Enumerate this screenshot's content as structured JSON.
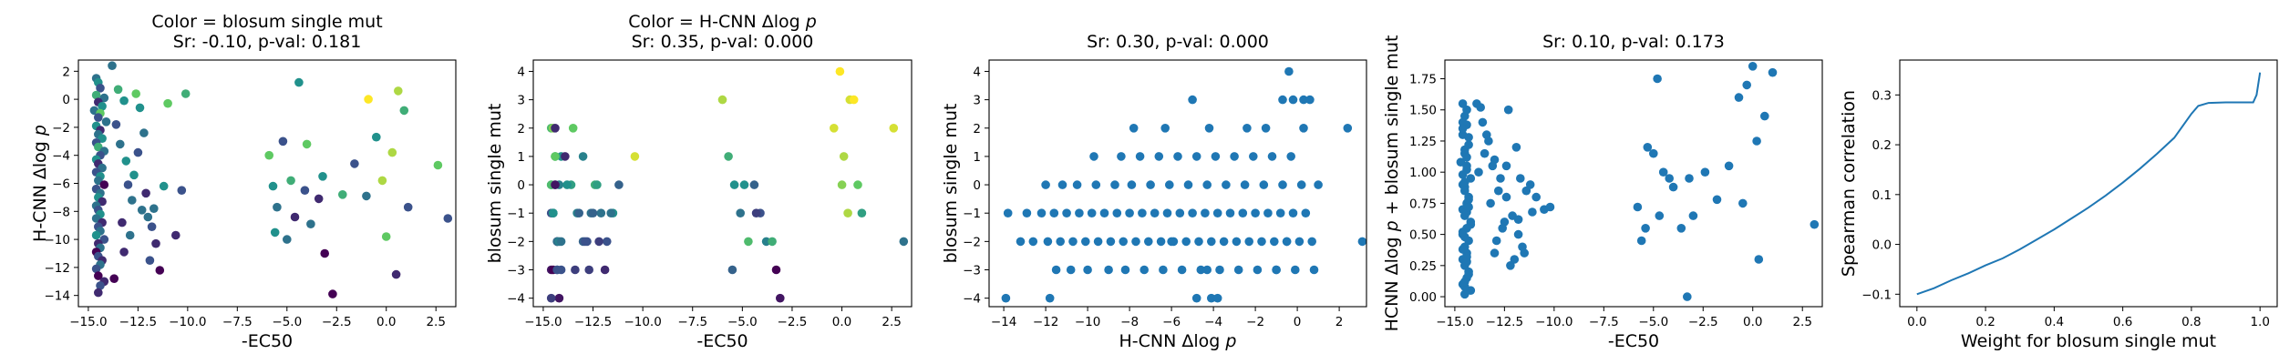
{
  "figure": {
    "colors": {
      "axis": "#000000",
      "scatter": "#1f77b4",
      "line": "#1f77b4",
      "viridis": [
        "#440154",
        "#3b528b",
        "#21918c",
        "#5ec962",
        "#fde725"
      ]
    }
  },
  "chart_data": [
    {
      "type": "scatter",
      "title": "Color = blosum single mut",
      "subtitle": "Sr: -0.10, p-val: 0.181",
      "xlabel": "-EC50",
      "ylabel": "H-CNN Δlog p",
      "xlim": [
        -15.5,
        3.5
      ],
      "ylim": [
        -14.8,
        2.8
      ],
      "xticks": [
        -15.0,
        -12.5,
        -10.0,
        -7.5,
        -5.0,
        -2.5,
        0.0,
        2.5
      ],
      "yticks": [
        2,
        0,
        -2,
        -4,
        -6,
        -8,
        -10,
        -12,
        -14
      ],
      "grid": false,
      "colormap": "viridis",
      "color_range": [
        -4,
        4
      ],
      "x": [
        -14.6,
        -14.5,
        -14.4,
        -14.6,
        -14.2,
        -14.5,
        -14.3,
        -14.7,
        -14.4,
        -14.5,
        -14.1,
        -14.6,
        -14.4,
        -14.5,
        -14.3,
        -14.6,
        -14.5,
        -14.2,
        -14.4,
        -14.6,
        -14.5,
        -14.3,
        -14.6,
        -14.4,
        -14.5,
        -14.2,
        -14.6,
        -14.4,
        -14.5,
        -14.3,
        -14.6,
        -14.5,
        -14.4,
        -14.6,
        -14.3,
        -14.5,
        -14.4,
        -14.6,
        -14.2,
        -14.5,
        -14.4,
        -14.6,
        -14.5,
        -14.3,
        -14.4,
        -14.6,
        -14.5,
        -14.2,
        -14.4,
        -14.5,
        -13.8,
        -13.5,
        -13.2,
        -13.6,
        -13.4,
        -13.1,
        -13.0,
        -12.8,
        -13.3,
        -12.9,
        -12.6,
        -12.4,
        -12.2,
        -12.5,
        -12.7,
        -12.1,
        -12.3,
        -11.8,
        -11.6,
        -11.9,
        -11.4,
        -11.2,
        -11.7,
        -11.0,
        -10.6,
        -10.3,
        -10.1,
        -12.0,
        -13.2,
        -13.7,
        -5.9,
        -5.7,
        -5.5,
        -5.2,
        -4.8,
        -4.6,
        -4.4,
        -4.1,
        -3.8,
        -3.4,
        -3.1,
        -2.7,
        -2.2,
        -1.6,
        -0.9,
        -0.5,
        -0.2,
        0.0,
        0.3,
        0.6,
        0.9,
        1.1,
        2.6,
        3.1,
        -5.6,
        -5.0,
        -4.0,
        -3.2,
        -1.0,
        0.5
      ],
      "y": [
        1.5,
        1.2,
        0.8,
        0.3,
        0.1,
        -0.2,
        -0.5,
        -0.8,
        -1.0,
        -1.3,
        -1.6,
        -1.9,
        -2.2,
        -2.5,
        -2.8,
        -3.1,
        -3.4,
        -3.7,
        -4.0,
        -4.3,
        -4.6,
        -4.9,
        -5.2,
        -5.5,
        -5.8,
        -6.1,
        -6.4,
        -6.7,
        -7.0,
        -7.3,
        -7.6,
        -7.9,
        -8.2,
        -8.5,
        -8.8,
        -9.1,
        -9.4,
        -9.7,
        -10.0,
        -10.3,
        -10.6,
        -10.9,
        -11.2,
        -11.5,
        -11.8,
        -12.1,
        -12.6,
        -13.0,
        -13.3,
        -13.8,
        2.4,
        0.7,
        -0.1,
        -1.8,
        -3.2,
        -4.4,
        -6.1,
        -7.2,
        -8.8,
        -9.7,
        0.4,
        -0.6,
        -2.4,
        -3.8,
        -5.4,
        -6.7,
        -7.9,
        -9.1,
        -10.3,
        -11.5,
        -12.2,
        -6.2,
        -7.8,
        -0.3,
        -9.7,
        -6.5,
        0.4,
        -8.4,
        -10.9,
        -12.8,
        -4.0,
        -6.2,
        -7.7,
        -3.0,
        -5.8,
        -8.4,
        1.2,
        -6.5,
        -8.9,
        -7.1,
        -11.0,
        -13.9,
        -6.8,
        -4.6,
        0.0,
        -2.7,
        -5.8,
        -9.8,
        -3.8,
        0.6,
        -0.8,
        -7.7,
        -4.7,
        -8.5,
        -9.5,
        -10.0,
        -3.2,
        -5.5,
        -6.9,
        -12.5
      ],
      "c": [
        -1,
        0,
        -2,
        1,
        -1,
        -3,
        0,
        -1,
        2,
        -2,
        -1,
        0,
        -3,
        -1,
        0,
        -2,
        1,
        -1,
        -2,
        0,
        -3,
        -1,
        -2,
        0,
        -1,
        -4,
        -2,
        -1,
        0,
        -3,
        -1,
        -2,
        0,
        -1,
        -3,
        -2,
        -1,
        0,
        -2,
        -3,
        -1,
        -4,
        -2,
        -3,
        -1,
        -2,
        -4,
        -3,
        -2,
        -3,
        -1,
        1,
        0,
        -2,
        -1,
        0,
        -2,
        -1,
        -3,
        -1,
        2,
        0,
        -1,
        -2,
        0,
        -3,
        -1,
        -2,
        -3,
        -2,
        -4,
        0,
        -1,
        2,
        -3,
        -2,
        1,
        -1,
        -3,
        -4,
        2,
        0,
        -1,
        -2,
        1,
        -3,
        0,
        -2,
        -1,
        -3,
        -4,
        -4,
        1,
        -2,
        4,
        0,
        3,
        2,
        3,
        3,
        1,
        -2,
        2,
        -2,
        0,
        -1,
        2,
        0,
        -1,
        -3
      ]
    },
    {
      "type": "scatter",
      "title": "Color = H-CNN Δlog p",
      "subtitle": "Sr: 0.35, p-val: 0.000",
      "xlabel": "-EC50",
      "ylabel": "blosum single mut",
      "xlim": [
        -15.5,
        3.5
      ],
      "ylim": [
        -4.3,
        4.4
      ],
      "xticks": [
        -15.0,
        -12.5,
        -10.0,
        -7.5,
        -5.0,
        -2.5,
        0.0,
        2.5
      ],
      "yticks": [
        4,
        3,
        2,
        1,
        0,
        -1,
        -2,
        -3,
        -4
      ],
      "grid": false,
      "colormap": "viridis",
      "color_range": [
        -14,
        2
      ],
      "x": [
        -14.6,
        -14.4,
        -14.2,
        -14.5,
        -14.3,
        -14.6,
        -14.5,
        -14.1,
        -14.4,
        -14.6,
        -14.3,
        -14.5,
        -14.2,
        -14.4,
        -14.6,
        -14.5,
        -14.3,
        -14.1,
        -14.4,
        -14.6,
        -14.5,
        -14.2,
        -14.3,
        -14.6,
        -14.4,
        -14.5,
        -14.1,
        -14.3,
        -13.9,
        -13.6,
        -13.3,
        -13.0,
        -12.7,
        -12.4,
        -12.1,
        -11.8,
        -11.5,
        -11.2,
        -10.4,
        -13.5,
        -13.0,
        -12.6,
        -12.2,
        -11.9,
        -13.8,
        -13.2,
        -12.8,
        -12.3,
        -11.6,
        -13.4,
        -12.9,
        -12.5,
        -6.0,
        -5.7,
        -5.4,
        -5.1,
        -4.7,
        -4.4,
        -4.1,
        -3.8,
        -3.3,
        -3.1,
        -0.4,
        -0.1,
        0.1,
        0.4,
        0.6,
        0.8,
        1.0,
        2.6,
        3.1,
        -5.5,
        -4.9,
        -4.3,
        -3.5,
        0.0,
        0.3
      ],
      "y": [
        2,
        1,
        0,
        -1,
        -2,
        -3,
        2,
        1,
        0,
        -1,
        -2,
        -3,
        -4,
        1,
        0,
        -1,
        -2,
        -3,
        2,
        0,
        -1,
        -2,
        -3,
        -4,
        0,
        -1,
        -2,
        -3,
        1,
        0,
        -1,
        -2,
        -3,
        0,
        -1,
        -2,
        -1,
        0,
        1,
        2,
        1,
        -1,
        -2,
        -3,
        0,
        -1,
        -2,
        0,
        -1,
        -3,
        -2,
        -1,
        3,
        1,
        0,
        -1,
        -2,
        0,
        -1,
        -2,
        -3,
        -4,
        2,
        4,
        1,
        3,
        3,
        0,
        -1,
        2,
        -2,
        -3,
        0,
        -1,
        -2,
        0,
        -1
      ],
      "c": [
        -3,
        -5,
        -7,
        -9,
        -11,
        -13,
        -1,
        -6,
        -8,
        -10,
        -12,
        -14,
        -13,
        -2,
        -4,
        -6,
        -8,
        -10,
        -12,
        -3,
        -5,
        -7,
        -9,
        -11,
        -13,
        -6,
        -8,
        -10,
        -12,
        -5,
        -7,
        -9,
        -11,
        -4,
        -8,
        -10,
        -6,
        -9,
        1,
        -2,
        -7,
        -8,
        -11,
        -12,
        -6,
        -9,
        -10,
        -5,
        -8,
        -11,
        -10,
        -9,
        0,
        -4,
        -6,
        -8,
        -3,
        -9,
        -10,
        -7,
        -14,
        -13,
        1,
        2,
        0,
        1,
        2,
        -2,
        -5,
        1,
        -8,
        -9,
        -6,
        -11,
        -4,
        -1,
        0
      ]
    },
    {
      "type": "scatter",
      "title": "Sr: 0.30, p-val: 0.000",
      "xlabel": "H-CNN Δlog p",
      "ylabel": "blosum single mut",
      "xlim": [
        -14.7,
        3.3
      ],
      "ylim": [
        -4.3,
        4.4
      ],
      "xticks": [
        -14,
        -12,
        -10,
        -8,
        -6,
        -4,
        -2,
        0,
        2
      ],
      "yticks": [
        4,
        3,
        2,
        1,
        0,
        -1,
        -2,
        -3,
        -4
      ],
      "grid": false,
      "x": [
        -13.8,
        -12.9,
        -12.2,
        -11.6,
        -11.0,
        -10.4,
        -9.8,
        -9.2,
        -8.6,
        -8.0,
        -7.4,
        -6.8,
        -6.2,
        -5.6,
        -5.0,
        -4.4,
        -3.8,
        -3.2,
        -2.6,
        -2.0,
        -1.4,
        -0.8,
        -0.2,
        0.4,
        -13.2,
        -12.6,
        -11.9,
        -11.3,
        -10.7,
        -10.1,
        -9.5,
        -8.9,
        -8.3,
        -7.7,
        -7.1,
        -6.5,
        -5.9,
        -5.3,
        -4.7,
        -4.1,
        -3.5,
        -2.9,
        -2.3,
        -1.7,
        -1.1,
        -0.5,
        0.1,
        0.7,
        -12.0,
        -11.2,
        -10.5,
        -9.6,
        -8.7,
        -7.9,
        -7.0,
        -6.1,
        -5.2,
        -4.3,
        -3.4,
        -2.5,
        -1.6,
        -0.7,
        0.2,
        1.0,
        -11.5,
        -10.8,
        -10.0,
        -9.0,
        -8.2,
        -7.3,
        -6.4,
        -5.5,
        -4.6,
        -3.7,
        -2.8,
        -1.9,
        -1.0,
        -0.1,
        0.8,
        -9.7,
        -8.4,
        -7.5,
        -6.6,
        -5.7,
        -4.8,
        -3.9,
        -3.0,
        -2.1,
        -1.2,
        -0.3,
        -6.3,
        -4.2,
        -2.4,
        -1.5,
        0.3,
        -5.0,
        -0.7,
        -0.2,
        -7.8,
        -0.4,
        0.3,
        0.6,
        2.4,
        3.1,
        -4.8,
        -4.1,
        -3.8,
        -11.8,
        -13.9,
        -6.0,
        -4.3,
        -1.0,
        -0.5
      ],
      "y": [
        -1,
        -1,
        -1,
        -1,
        -1,
        -1,
        -1,
        -1,
        -1,
        -1,
        -1,
        -1,
        -1,
        -1,
        -1,
        -1,
        -1,
        -1,
        -1,
        -1,
        -1,
        -1,
        -1,
        -1,
        -2,
        -2,
        -2,
        -2,
        -2,
        -2,
        -2,
        -2,
        -2,
        -2,
        -2,
        -2,
        -2,
        -2,
        -2,
        -2,
        -2,
        -2,
        -2,
        -2,
        -2,
        -2,
        -2,
        -2,
        0,
        0,
        0,
        0,
        0,
        0,
        0,
        0,
        0,
        0,
        0,
        0,
        0,
        0,
        0,
        0,
        -3,
        -3,
        -3,
        -3,
        -3,
        -3,
        -3,
        -3,
        -3,
        -3,
        -3,
        -3,
        -3,
        -3,
        -3,
        1,
        1,
        1,
        1,
        1,
        1,
        1,
        1,
        1,
        1,
        1,
        2,
        2,
        2,
        2,
        2,
        3,
        3,
        3,
        2,
        4,
        3,
        3,
        2,
        -2,
        -4,
        -4,
        -4,
        -4,
        -4,
        -2,
        -3,
        -3,
        -2
      ],
      "c": []
    },
    {
      "type": "scatter",
      "title": "Sr: 0.10, p-val: 0.173",
      "xlabel": "-EC50",
      "ylabel": "HCNN Δlog p + blosum single mut",
      "xlim": [
        -15.5,
        3.5
      ],
      "ylim": [
        -0.08,
        1.9
      ],
      "xticks": [
        -15.0,
        -12.5,
        -10.0,
        -7.5,
        -5.0,
        -2.5,
        0.0,
        2.5
      ],
      "yticks": [
        0.0,
        0.25,
        0.5,
        0.75,
        1.0,
        1.25,
        1.5,
        1.75
      ],
      "ytick_labels": [
        "0.00",
        "0.25",
        "0.50",
        "0.75",
        "1.00",
        "1.25",
        "1.50",
        "1.75"
      ],
      "grid": false,
      "x": [
        -14.6,
        -14.5,
        -14.4,
        -14.6,
        -14.3,
        -14.5,
        -14.7,
        -14.4,
        -14.2,
        -14.6,
        -14.5,
        -14.3,
        -14.4,
        -14.6,
        -14.5,
        -14.2,
        -14.4,
        -14.6,
        -14.3,
        -14.5,
        -14.4,
        -14.6,
        -14.5,
        -14.3,
        -14.4,
        -14.6,
        -14.2,
        -14.5,
        -14.4,
        -14.6,
        -14.3,
        -14.5,
        -14.4,
        -14.6,
        -14.5,
        -14.3,
        -14.4,
        -14.2,
        -14.5,
        -14.6,
        -14.4,
        -14.3,
        -14.5,
        -14.6,
        -14.4,
        -14.5,
        -14.3,
        -14.6,
        -14.4,
        -14.5,
        -13.9,
        -13.6,
        -13.3,
        -13.0,
        -12.7,
        -12.4,
        -12.1,
        -11.8,
        -11.5,
        -11.2,
        -10.9,
        -10.5,
        -10.2,
        -13.7,
        -13.4,
        -13.1,
        -12.8,
        -12.5,
        -12.2,
        -11.9,
        -11.6,
        -13.8,
        -13.2,
        -12.6,
        -12.0,
        -11.4,
        -13.5,
        -12.9,
        -12.3,
        -11.7,
        -11.1,
        -13.0,
        -12.4,
        -11.8,
        -5.8,
        -5.6,
        -5.3,
        -5.0,
        -4.8,
        -4.5,
        -4.2,
        -4.0,
        -3.6,
        -3.3,
        -3.0,
        -2.4,
        -1.8,
        -1.2,
        -0.7,
        -0.3,
        0.0,
        0.3,
        0.6,
        1.0,
        3.1,
        -5.4,
        -4.7,
        -3.2,
        -0.5,
        0.2
      ],
      "y": [
        1.55,
        1.45,
        1.38,
        1.3,
        1.22,
        1.15,
        1.08,
        1.02,
        0.95,
        0.9,
        0.85,
        0.8,
        0.75,
        0.7,
        0.65,
        0.6,
        0.55,
        0.5,
        0.45,
        0.4,
        0.35,
        0.3,
        0.25,
        0.2,
        0.15,
        0.1,
        0.05,
        0.02,
        1.5,
        1.4,
        1.28,
        1.18,
        1.05,
        0.98,
        0.88,
        0.78,
        0.68,
        0.58,
        0.48,
        0.38,
        0.28,
        0.18,
        0.08,
        1.35,
        1.12,
        0.92,
        0.72,
        0.52,
        0.32,
        0.12,
        1.55,
        1.4,
        1.25,
        1.1,
        0.95,
        0.8,
        0.65,
        0.5,
        0.35,
        0.9,
        0.8,
        0.7,
        0.72,
        1.52,
        1.3,
        1.05,
        0.85,
        0.6,
        0.25,
        1.2,
        0.4,
        1.0,
        0.75,
        0.55,
        0.3,
        0.85,
        1.15,
        0.45,
        1.5,
        0.95,
        0.68,
        0.35,
        1.05,
        0.62,
        0.72,
        0.45,
        1.2,
        1.15,
        1.75,
        1.0,
        0.95,
        0.88,
        0.55,
        0.0,
        0.65,
        1.0,
        0.78,
        1.05,
        1.6,
        1.7,
        1.85,
        0.3,
        1.45,
        1.8,
        0.58,
        0.55,
        0.65,
        0.95,
        0.75,
        1.25
      ],
      "c": []
    },
    {
      "type": "line",
      "title": "",
      "xlabel": "Weight for blosum single mut",
      "ylabel": "Spearman correlation",
      "xlim": [
        -0.05,
        1.05
      ],
      "ylim": [
        -0.125,
        0.37
      ],
      "xticks": [
        0.0,
        0.2,
        0.4,
        0.6,
        0.8,
        1.0
      ],
      "xtick_labels": [
        "0.0",
        "0.2",
        "0.4",
        "0.6",
        "0.8",
        "1.0"
      ],
      "yticks": [
        -0.1,
        0.0,
        0.1,
        0.2,
        0.3
      ],
      "ytick_labels": [
        "−0.1",
        "0.0",
        "0.1",
        "0.2",
        "0.3"
      ],
      "grid": false,
      "x": [
        0.0,
        0.05,
        0.1,
        0.15,
        0.2,
        0.25,
        0.3,
        0.35,
        0.4,
        0.45,
        0.5,
        0.55,
        0.6,
        0.65,
        0.7,
        0.75,
        0.8,
        0.82,
        0.85,
        0.9,
        0.95,
        0.98,
        0.99,
        1.0
      ],
      "y": [
        -0.1,
        -0.088,
        -0.072,
        -0.058,
        -0.042,
        -0.028,
        -0.01,
        0.01,
        0.03,
        0.052,
        0.074,
        0.098,
        0.124,
        0.152,
        0.182,
        0.214,
        0.262,
        0.278,
        0.284,
        0.285,
        0.285,
        0.285,
        0.3,
        0.345
      ]
    }
  ]
}
